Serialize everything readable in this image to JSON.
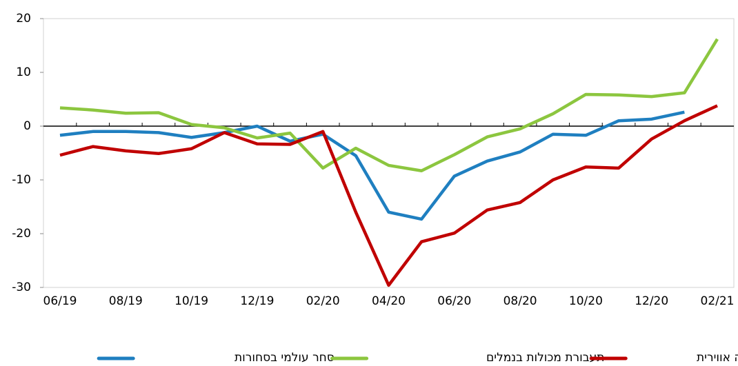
{
  "chart_data": {
    "type": "line",
    "categories": [
      "06/19",
      null,
      "08/19",
      null,
      "10/19",
      null,
      "12/19",
      null,
      "02/20",
      null,
      "04/20",
      null,
      "06/20",
      null,
      "08/20",
      null,
      "10/20",
      null,
      "12/20",
      null,
      "02/21"
    ],
    "series": [
      {
        "name": "סחר עולמי בסחורות",
        "color": "#1f7fc0",
        "values": [
          -1.7,
          -1.0,
          -1.0,
          -1.2,
          -2.1,
          -1.2,
          0.0,
          -2.8,
          -1.5,
          -5.5,
          -16.0,
          -17.3,
          -9.3,
          -6.5,
          -4.8,
          -1.5,
          -1.7,
          1.0,
          1.3,
          2.6,
          null
        ]
      },
      {
        "name": "תעבורת מכולות בנמלים",
        "color": "#8cc63f",
        "values": [
          3.4,
          3.0,
          2.4,
          2.5,
          0.3,
          -0.3,
          -2.2,
          -1.3,
          -7.8,
          -4.1,
          -7.3,
          -8.3,
          -5.3,
          -2.0,
          -0.5,
          2.3,
          5.9,
          5.8,
          5.5,
          6.2,
          16.2
        ]
      },
      {
        "name": "הובלה אווירית",
        "color": "#c00000",
        "values": [
          -5.4,
          -3.8,
          -4.6,
          -5.1,
          -4.2,
          -1.2,
          -3.3,
          -3.4,
          -1.0,
          -16.0,
          -29.6,
          -21.5,
          -19.9,
          -15.6,
          -14.2,
          -10.0,
          -7.6,
          -7.8,
          -2.4,
          1.0,
          3.8
        ]
      }
    ],
    "ylim": [
      -30,
      20
    ],
    "yticks": [
      -30,
      -20,
      -10,
      0,
      10,
      20
    ],
    "grid": false
  }
}
